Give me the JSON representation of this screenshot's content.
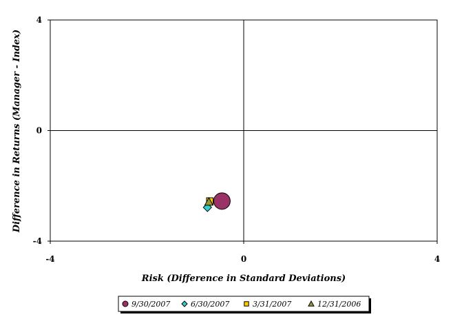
{
  "chart_data": {
    "type": "scatter",
    "title": "",
    "xlabel": "Risk (Difference in Standard Deviations)",
    "ylabel": "Difference in Returns (Manager - Index)",
    "xlim": [
      -4,
      4
    ],
    "ylim": [
      -4,
      4
    ],
    "xticks": [
      "-4",
      "0",
      "4"
    ],
    "yticks": [
      "4",
      "0",
      "-4"
    ],
    "grid": false,
    "legend_position": "bottom",
    "series": [
      {
        "name": "9/30/2007",
        "marker": "circle",
        "color": "#993366",
        "x": [
          -0.45
        ],
        "y": [
          -2.55
        ],
        "size": "large"
      },
      {
        "name": "6/30/2007",
        "marker": "diamond",
        "color": "#33cccc",
        "x": [
          -0.75
        ],
        "y": [
          -2.78
        ],
        "size": "small"
      },
      {
        "name": "3/31/2007",
        "marker": "square",
        "color": "#ffcc00",
        "x": [
          -0.7
        ],
        "y": [
          -2.55
        ],
        "size": "small"
      },
      {
        "name": "12/31/2006",
        "marker": "triangle",
        "color": "#999933",
        "x": [
          -0.72
        ],
        "y": [
          -2.58
        ],
        "size": "small"
      }
    ]
  }
}
